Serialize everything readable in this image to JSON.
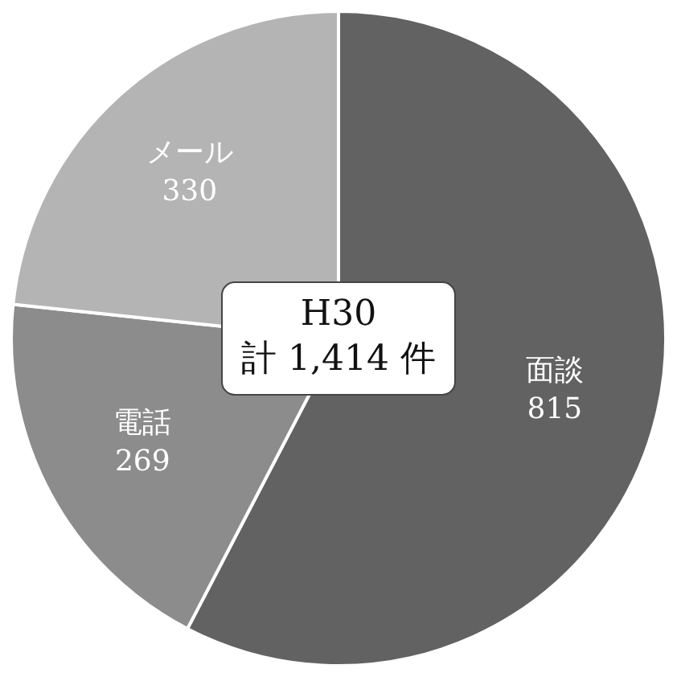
{
  "chart_data": {
    "type": "pie",
    "categories": [
      "面談",
      "電話",
      "メール"
    ],
    "values": [
      815,
      269,
      330
    ],
    "colors": [
      "#626262",
      "#8c8c8c",
      "#b4b4b4"
    ],
    "data_labels": true,
    "legend": false,
    "annotations": [
      "H30",
      "計 1,414 件"
    ]
  }
}
